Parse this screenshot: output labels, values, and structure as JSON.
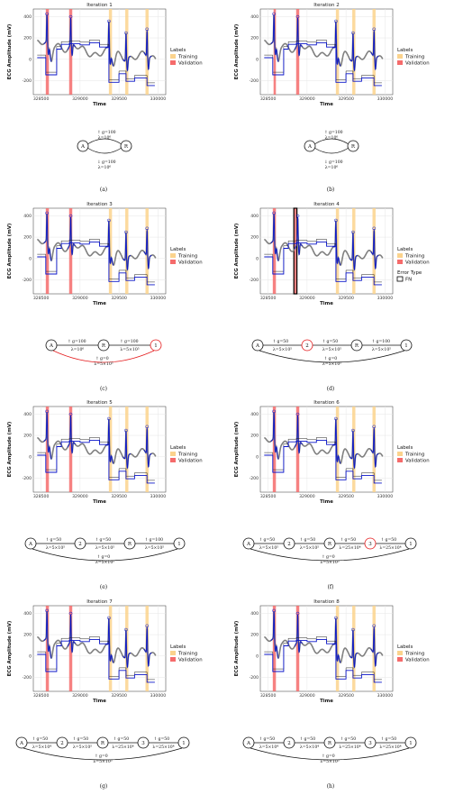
{
  "axes": {
    "xlabel": "Time",
    "ylabel": "ECG Amplitude (mV)",
    "xticks": [
      "328500",
      "329000",
      "329500",
      "330000"
    ],
    "yticks": [
      "400",
      "200",
      "0",
      "-200"
    ],
    "xlim": [
      328400,
      330100
    ],
    "ylim": [
      -330,
      470
    ]
  },
  "legend": {
    "title": "Labels",
    "training": "Training",
    "validation": "Validation",
    "error_title": "Error Type",
    "error_fn": "FN"
  },
  "colors": {
    "training": "#fbd38d",
    "validation": "#f56b6b",
    "signal": "#808080",
    "segments": "#0b16c9",
    "fit": "#222222",
    "highlight": "#e41a1c"
  },
  "chart_data": [
    {
      "type": "line",
      "title": "Iteration 1",
      "caption": "(a)",
      "validation": [
        [
          328560,
          328600
        ],
        [
          328860,
          328900
        ]
      ],
      "training": [
        [
          329370,
          329410
        ],
        [
          329580,
          329620
        ],
        [
          329840,
          329880
        ]
      ],
      "fn": [],
      "graph": {
        "nodes": [
          "A",
          "R"
        ],
        "edges": [
          {
            "from": "A",
            "to": "R",
            "top": "g=100",
            "bot": "λ=10⁶",
            "hl": true
          },
          {
            "from": "R",
            "to": "A",
            "top": "g=100",
            "bot": "λ=10⁶",
            "hl": false
          }
        ]
      }
    },
    {
      "type": "line",
      "title": "Iteration 2",
      "caption": "(b)",
      "validation": [
        [
          328570,
          328600
        ],
        [
          328860,
          328900
        ]
      ],
      "training": [
        [
          329370,
          329410
        ],
        [
          329580,
          329620
        ],
        [
          329840,
          329880
        ]
      ],
      "fn": [],
      "graph": {
        "nodes": [
          "A",
          "R"
        ],
        "edges": [
          {
            "from": "A",
            "to": "R",
            "top": "g=100",
            "bot": "λ=10⁶",
            "hl": false
          },
          {
            "from": "R",
            "to": "A",
            "top": "g=100",
            "bot": "λ=10⁶",
            "hl": true
          }
        ]
      }
    },
    {
      "type": "line",
      "title": "Iteration 3",
      "caption": "(c)",
      "validation": [
        [
          328560,
          328600
        ],
        [
          328860,
          328900
        ]
      ],
      "training": [
        [
          329370,
          329410
        ],
        [
          329580,
          329620
        ],
        [
          329840,
          329880
        ]
      ],
      "fn": [],
      "graph": {
        "nodes": [
          "A",
          "R",
          "1"
        ],
        "edges": [
          {
            "from": "A",
            "to": "R",
            "top": "g=100",
            "bot": "λ=10⁶",
            "hl": false
          },
          {
            "from": "R",
            "to": "1",
            "top": "g=100",
            "bot": "λ=5×10⁵",
            "hl": true
          }
        ],
        "back": {
          "top": "g=0",
          "bot": "λ=5×10⁵",
          "hl": true
        }
      }
    },
    {
      "type": "line",
      "title": "Iteration 4",
      "caption": "(d)",
      "validation": [
        [
          328560,
          328600
        ],
        [
          328830,
          328870
        ]
      ],
      "training": [
        [
          329370,
          329410
        ],
        [
          329580,
          329620
        ],
        [
          329840,
          329880
        ]
      ],
      "fn": [
        [
          328830,
          328870
        ]
      ],
      "graph": {
        "nodes": [
          "A",
          "2",
          "R",
          "1"
        ],
        "edges": [
          {
            "from": "A",
            "to": "2",
            "top": "g=50",
            "bot": "λ=5×10⁵",
            "hl": true
          },
          {
            "from": "2",
            "to": "R",
            "top": "g=50",
            "bot": "λ=5×10⁵",
            "hl": true
          },
          {
            "from": "R",
            "to": "1",
            "top": "g=100",
            "bot": "λ=5×10⁵",
            "hl": false
          }
        ],
        "back": {
          "top": "g=0",
          "bot": "λ=5×10⁵",
          "hl": false
        }
      }
    },
    {
      "type": "line",
      "title": "Iteration 5",
      "caption": "(e)",
      "validation": [
        [
          328560,
          328600
        ],
        [
          328860,
          328900
        ]
      ],
      "training": [
        [
          329370,
          329410
        ],
        [
          329580,
          329620
        ],
        [
          329840,
          329880
        ]
      ],
      "fn": [],
      "graph": {
        "nodes": [
          "A",
          "2",
          "R",
          "1"
        ],
        "edges": [
          {
            "from": "A",
            "to": "2",
            "top": "g=50",
            "bot": "λ=5×10⁵",
            "hl": false
          },
          {
            "from": "2",
            "to": "R",
            "top": "g=50",
            "bot": "λ=5×10⁵",
            "hl": false
          },
          {
            "from": "R",
            "to": "1",
            "top": "g=100",
            "bot": "λ=5×10⁵",
            "hl": true,
            "hlTop": false
          }
        ],
        "back": {
          "top": "g=0",
          "bot": "λ=5×10⁵",
          "hl": false
        }
      }
    },
    {
      "type": "line",
      "title": "Iteration 6",
      "caption": "(f)",
      "validation": [
        [
          328560,
          328600
        ],
        [
          328860,
          328900
        ]
      ],
      "training": [
        [
          329370,
          329410
        ],
        [
          329580,
          329620
        ],
        [
          329840,
          329880
        ]
      ],
      "fn": [],
      "graph": {
        "nodes": [
          "A",
          "2",
          "R",
          "3",
          "1"
        ],
        "hlNode": "3",
        "edges": [
          {
            "from": "A",
            "to": "2",
            "top": "g=50",
            "bot": "λ=5×10⁵",
            "hl": false
          },
          {
            "from": "2",
            "to": "R",
            "top": "g=50",
            "bot": "λ=5×10⁵",
            "hl": false
          },
          {
            "from": "R",
            "to": "3",
            "top": "g=50",
            "bot": "λ=25×10⁴",
            "hl": true
          },
          {
            "from": "3",
            "to": "1",
            "top": "g=50",
            "bot": "λ=25×10⁴",
            "hl": true
          }
        ],
        "back": {
          "top": "g=0",
          "bot": "λ=5×10⁵",
          "hl": false
        }
      }
    },
    {
      "type": "line",
      "title": "Iteration 7",
      "caption": "(g)",
      "validation": [
        [
          328560,
          328600
        ],
        [
          328860,
          328900
        ]
      ],
      "training": [
        [
          329370,
          329410
        ],
        [
          329580,
          329620
        ],
        [
          329840,
          329880
        ]
      ],
      "fn": [],
      "graph": {
        "nodes": [
          "A",
          "2",
          "R",
          "3",
          "1"
        ],
        "edges": [
          {
            "from": "A",
            "to": "2",
            "top": "g=50",
            "bot": "λ=5×10⁴",
            "hl": true,
            "hlTop": false
          },
          {
            "from": "2",
            "to": "R",
            "top": "g=50",
            "bot": "λ=5×10⁵",
            "hl": false
          },
          {
            "from": "R",
            "to": "3",
            "top": "g=50",
            "bot": "λ=25×10⁴",
            "hl": false
          },
          {
            "from": "3",
            "to": "1",
            "top": "g=50",
            "bot": "λ=25×10⁴",
            "hl": false
          }
        ],
        "back": {
          "top": "g=0",
          "bot": "λ=5×10⁵",
          "hl": false
        }
      }
    },
    {
      "type": "line",
      "title": "Iteration 8",
      "caption": "(h)",
      "validation": [
        [
          328560,
          328600
        ],
        [
          328860,
          328900
        ]
      ],
      "training": [
        [
          329370,
          329410
        ],
        [
          329580,
          329620
        ],
        [
          329840,
          329880
        ]
      ],
      "fn": [],
      "graph": {
        "nodes": [
          "A",
          "2",
          "R",
          "3",
          "1"
        ],
        "edges": [
          {
            "from": "A",
            "to": "2",
            "top": "g=50",
            "bot": "λ=5×10⁴",
            "hl": false
          },
          {
            "from": "2",
            "to": "R",
            "top": "g=50",
            "bot": "λ=5×10⁴",
            "hl": false
          },
          {
            "from": "R",
            "to": "3",
            "top": "g=50",
            "bot": "λ=25×10⁴",
            "hl": false
          },
          {
            "from": "3",
            "to": "1",
            "top": "g=50",
            "bot": "λ=25×10⁴",
            "hl": false
          }
        ],
        "back": {
          "top": "g=0",
          "bot": "λ=5×10⁵",
          "hl": false
        }
      }
    }
  ]
}
